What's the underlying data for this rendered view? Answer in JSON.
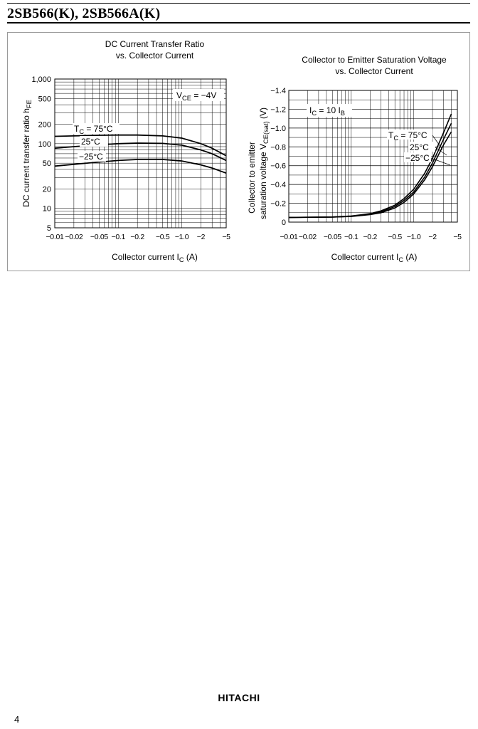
{
  "header": {
    "title": "2SB566(K), 2SB566A(K)"
  },
  "footer": {
    "brand": "HITACHI",
    "page_number": "4"
  },
  "chart_data": [
    {
      "type": "line",
      "title": "DC Current Transfer Ratio",
      "subtitle": "vs. Collector Current",
      "xlabel": "Collector current",
      "xlabel_symbol": "I",
      "xlabel_sub": "C",
      "xlabel_unit": "(A)",
      "ylabel": "DC current transfer ratio",
      "ylabel_symbol": "h",
      "ylabel_sub": "FE",
      "x_scale": "log",
      "y_scale": "log",
      "xlim": [
        -0.01,
        -5
      ],
      "ylim": [
        5,
        1000
      ],
      "x_ticks": [
        -0.01,
        -0.02,
        -0.05,
        -0.1,
        -0.2,
        -0.5,
        -1.0,
        -2,
        -5
      ],
      "x_tick_labels": [
        "−0.01",
        "−0.02",
        "−0.05",
        "−0.1",
        "−0.2",
        "−0.5",
        "−1.0",
        "−2",
        "−5"
      ],
      "y_ticks": [
        5,
        10,
        20,
        50,
        100,
        200,
        500,
        1000
      ],
      "y_tick_labels": [
        "5",
        "10",
        "20",
        "50",
        "100",
        "200",
        "500",
        "1,000"
      ],
      "grid": true,
      "condition": {
        "symbol": "V",
        "sub": "CE",
        "value": " = −4V"
      },
      "series": [
        {
          "name": "T_C = 75°C",
          "label_symbol": "T",
          "label_sub": "C",
          "label_value": " = 75°C",
          "x": [
            -0.01,
            -0.02,
            -0.05,
            -0.1,
            -0.2,
            -0.5,
            -1.0,
            -2,
            -3,
            -5
          ],
          "y": [
            130,
            132,
            135,
            136,
            136,
            132,
            122,
            100,
            85,
            65
          ]
        },
        {
          "name": "25°C",
          "label_value": "25°C",
          "x": [
            -0.01,
            -0.02,
            -0.05,
            -0.1,
            -0.2,
            -0.5,
            -1.0,
            -2,
            -3,
            -5
          ],
          "y": [
            85,
            90,
            96,
            100,
            102,
            101,
            95,
            80,
            70,
            55
          ]
        },
        {
          "name": "−25°C",
          "label_value": "−25°C",
          "x": [
            -0.01,
            -0.02,
            -0.05,
            -0.1,
            -0.2,
            -0.5,
            -1.0,
            -2,
            -3,
            -5
          ],
          "y": [
            45,
            48,
            52,
            55,
            57,
            57,
            54,
            47,
            42,
            35
          ]
        }
      ]
    },
    {
      "type": "line",
      "title": "Collector to Emitter Saturation Voltage",
      "subtitle": "vs. Collector Current",
      "xlabel": "Collector current",
      "xlabel_symbol": "I",
      "xlabel_sub": "C",
      "xlabel_unit": "(A)",
      "ylabel_line1": "Collector to emitter",
      "ylabel_line2": "saturation voltage",
      "ylabel_symbol": "V",
      "ylabel_sub": "CE(sat)",
      "ylabel_unit": "(V)",
      "x_scale": "log",
      "y_scale": "linear",
      "xlim": [
        -0.01,
        -5
      ],
      "ylim": [
        0,
        -1.4
      ],
      "x_ticks": [
        -0.01,
        -0.02,
        -0.05,
        -0.1,
        -0.2,
        -0.5,
        -1.0,
        -2,
        -5
      ],
      "x_tick_labels": [
        "−0.01",
        "−0.02",
        "−0.05",
        "−0.1",
        "−0.2",
        "−0.5",
        "−1.0",
        "−2",
        "−5"
      ],
      "y_ticks": [
        0,
        -0.2,
        -0.4,
        -0.6,
        -0.8,
        -1.0,
        -1.2,
        -1.4
      ],
      "y_tick_labels": [
        "0",
        "−0.2",
        "−0.4",
        "−0.6",
        "−0.8",
        "−1.0",
        "−1.2",
        "−1.4"
      ],
      "grid": true,
      "condition": {
        "symbol": "I",
        "sub": "C",
        "value": " = 10 I",
        "sub2": "B"
      },
      "series": [
        {
          "name": "T_C = 75°C",
          "label_symbol": "T",
          "label_sub": "C",
          "label_value": " = 75°C",
          "x": [
            -0.01,
            -0.05,
            -0.1,
            -0.2,
            -0.3,
            -0.5,
            -0.7,
            -1.0,
            -1.5,
            -2,
            -3,
            -4
          ],
          "y": [
            -0.05,
            -0.055,
            -0.065,
            -0.09,
            -0.12,
            -0.18,
            -0.25,
            -0.35,
            -0.52,
            -0.68,
            -0.95,
            -1.15
          ]
        },
        {
          "name": "25°C",
          "label_value": "25°C",
          "x": [
            -0.01,
            -0.05,
            -0.1,
            -0.2,
            -0.3,
            -0.5,
            -0.7,
            -1.0,
            -1.5,
            -2,
            -3,
            -4
          ],
          "y": [
            -0.05,
            -0.054,
            -0.062,
            -0.085,
            -0.11,
            -0.165,
            -0.23,
            -0.32,
            -0.48,
            -0.63,
            -0.88,
            -1.05
          ]
        },
        {
          "name": "−25°C",
          "label_value": "−25°C",
          "x": [
            -0.01,
            -0.05,
            -0.1,
            -0.2,
            -0.3,
            -0.5,
            -0.7,
            -1.0,
            -1.5,
            -2,
            -3,
            -4
          ],
          "y": [
            -0.05,
            -0.053,
            -0.06,
            -0.08,
            -0.1,
            -0.15,
            -0.21,
            -0.3,
            -0.45,
            -0.59,
            -0.82,
            -0.96
          ]
        }
      ]
    }
  ]
}
